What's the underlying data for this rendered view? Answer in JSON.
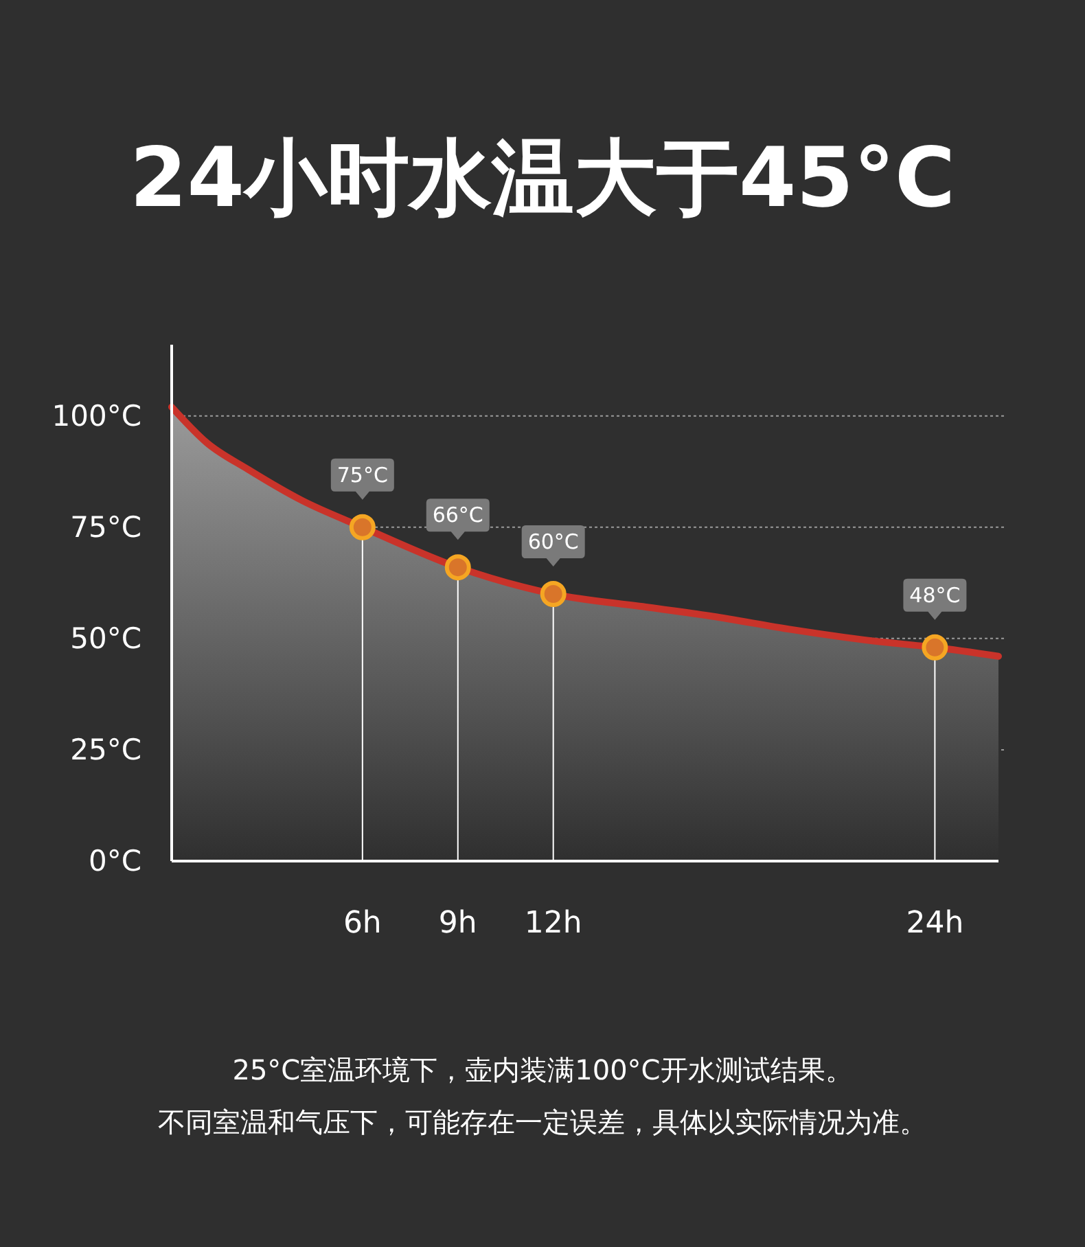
{
  "chart_data": {
    "type": "area",
    "title": "24小时水温大于45°C",
    "xlim": [
      0,
      26
    ],
    "xticks": [
      {
        "value": 6,
        "label": "6h"
      },
      {
        "value": 9,
        "label": "9h"
      },
      {
        "value": 12,
        "label": "12h"
      },
      {
        "value": 24,
        "label": "24h"
      }
    ],
    "ylim": [
      0,
      116
    ],
    "yticks": [
      {
        "value": 0,
        "label": "0°C"
      },
      {
        "value": 25,
        "label": "25°C"
      },
      {
        "value": 50,
        "label": "50°C"
      },
      {
        "value": 75,
        "label": "75°C"
      },
      {
        "value": 100,
        "label": "100°C"
      }
    ],
    "grid": "y",
    "series": [
      {
        "color": "#c9332a",
        "x": [
          0,
          1.1,
          2.4,
          4.1,
          6,
          9,
          12,
          15,
          17,
          19.5,
          22,
          24,
          26
        ],
        "values": [
          102,
          94,
          88,
          81,
          75,
          66,
          60,
          57,
          55,
          52,
          49.5,
          48,
          46
        ]
      },
      {
        "type": "lollipop",
        "color": "#f5a623",
        "marker": "circle",
        "x": [
          6,
          9,
          12,
          24
        ],
        "values": [
          75,
          66,
          60,
          48
        ],
        "value_labels": [
          "75°C",
          "66°C",
          "60°C",
          "48°C"
        ]
      }
    ],
    "annotations": [
      "25°C室温环境下，壶内装满100°C开水测试结果。",
      "不同室温和气压下，可能存在一定误差，具体以实际情况为准。"
    ]
  }
}
